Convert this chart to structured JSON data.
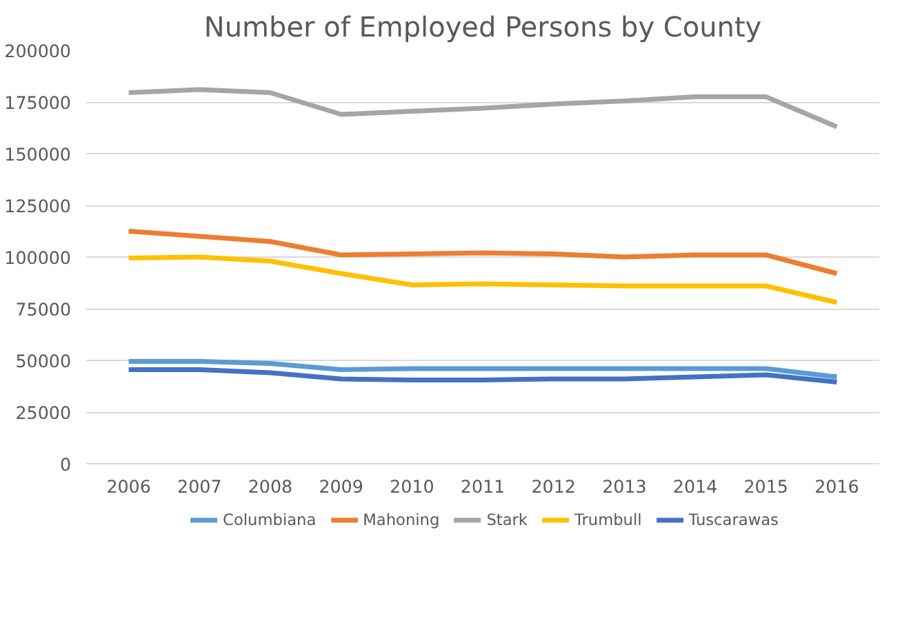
{
  "chart_data": {
    "type": "line",
    "title": "Number of Employed Persons by County",
    "categories": [
      "2006",
      "2007",
      "2008",
      "2009",
      "2010",
      "2011",
      "2012",
      "2013",
      "2014",
      "2015",
      "2016"
    ],
    "series": [
      {
        "name": "Columbiana",
        "color": "#5b9bd5",
        "values": [
          49500,
          49500,
          48500,
          45500,
          46000,
          46000,
          46000,
          46000,
          46000,
          46000,
          42000
        ]
      },
      {
        "name": "Mahoning",
        "color": "#ed7d31",
        "values": [
          112500,
          110000,
          107500,
          101000,
          101500,
          102000,
          101500,
          100000,
          101000,
          101000,
          92000
        ]
      },
      {
        "name": "Stark",
        "color": "#a5a5a5",
        "values": [
          179500,
          181000,
          179500,
          169000,
          170500,
          172000,
          174000,
          175500,
          177500,
          177500,
          163000
        ]
      },
      {
        "name": "Trumbull",
        "color": "#ffc000",
        "values": [
          99500,
          100000,
          98000,
          92000,
          86500,
          87000,
          86500,
          86000,
          86000,
          86000,
          78000
        ]
      },
      {
        "name": "Tuscarawas",
        "color": "#4472c4",
        "values": [
          45500,
          45500,
          44000,
          41000,
          40500,
          40500,
          41000,
          41000,
          42000,
          43000,
          39500
        ]
      }
    ],
    "ylim": [
      0,
      200000
    ],
    "yticks": [
      0,
      25000,
      50000,
      75000,
      100000,
      125000,
      150000,
      175000,
      200000
    ],
    "grid": "y",
    "legend": "bottom",
    "marker": "none",
    "line_style": "solid"
  }
}
